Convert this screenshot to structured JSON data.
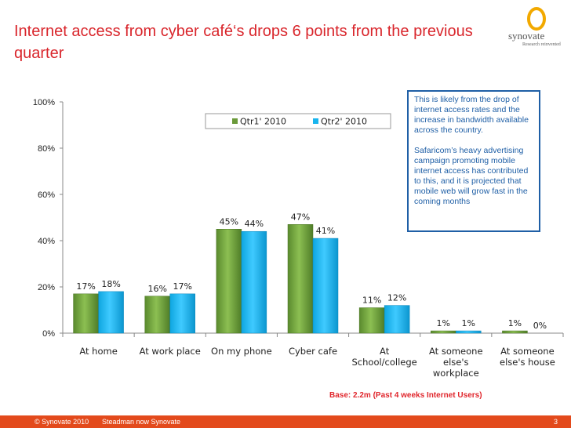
{
  "header": {
    "title": "Internet access from cyber café‘s drops 6 points from the previous quarter",
    "logo_text": "synovate",
    "logo_tagline": "Research reinvented"
  },
  "note": {
    "paragraph1": "This is likely from the drop of internet access rates and the increase in bandwidth available across the country.",
    "paragraph2": "Safaricom’s heavy advertising campaign promoting mobile internet access has contributed to this, and it is projected that mobile web will grow fast in the coming months"
  },
  "base_text": "Base: 2.2m (Past 4 weeks Internet Users)",
  "footer": {
    "copyright": "© Synovate 2010",
    "tagline": "Steadman now Synovate",
    "page_number": "3"
  },
  "colors": {
    "accent": "#d9262c",
    "series1": "#6b9a3a",
    "series2": "#19b5ee",
    "footer": "#e34a1c"
  },
  "chart_data": {
    "type": "bar",
    "title": "",
    "xlabel": "",
    "ylabel": "",
    "ylim": [
      0,
      100
    ],
    "ytick_labels": [
      "0%",
      "20%",
      "40%",
      "60%",
      "80%",
      "100%"
    ],
    "ytick_values": [
      0,
      20,
      40,
      60,
      80,
      100
    ],
    "legend_position": "top",
    "categories": [
      [
        "At home"
      ],
      [
        "At work place"
      ],
      [
        "On my phone"
      ],
      [
        "Cyber cafe"
      ],
      [
        "At",
        "School/college"
      ],
      [
        "At someone",
        "else's",
        "workplace"
      ],
      [
        "At someone",
        "else's house"
      ]
    ],
    "series": [
      {
        "name": "Qtr1' 2010",
        "values": [
          17,
          16,
          45,
          47,
          11,
          1,
          1
        ],
        "labels": [
          "17%",
          "16%",
          "45%",
          "47%",
          "11%",
          "1%",
          "1%"
        ]
      },
      {
        "name": "Qtr2' 2010",
        "values": [
          18,
          17,
          44,
          41,
          12,
          1,
          0
        ],
        "labels": [
          "18%",
          "17%",
          "44%",
          "41%",
          "12%",
          "1%",
          "0%"
        ]
      }
    ]
  }
}
